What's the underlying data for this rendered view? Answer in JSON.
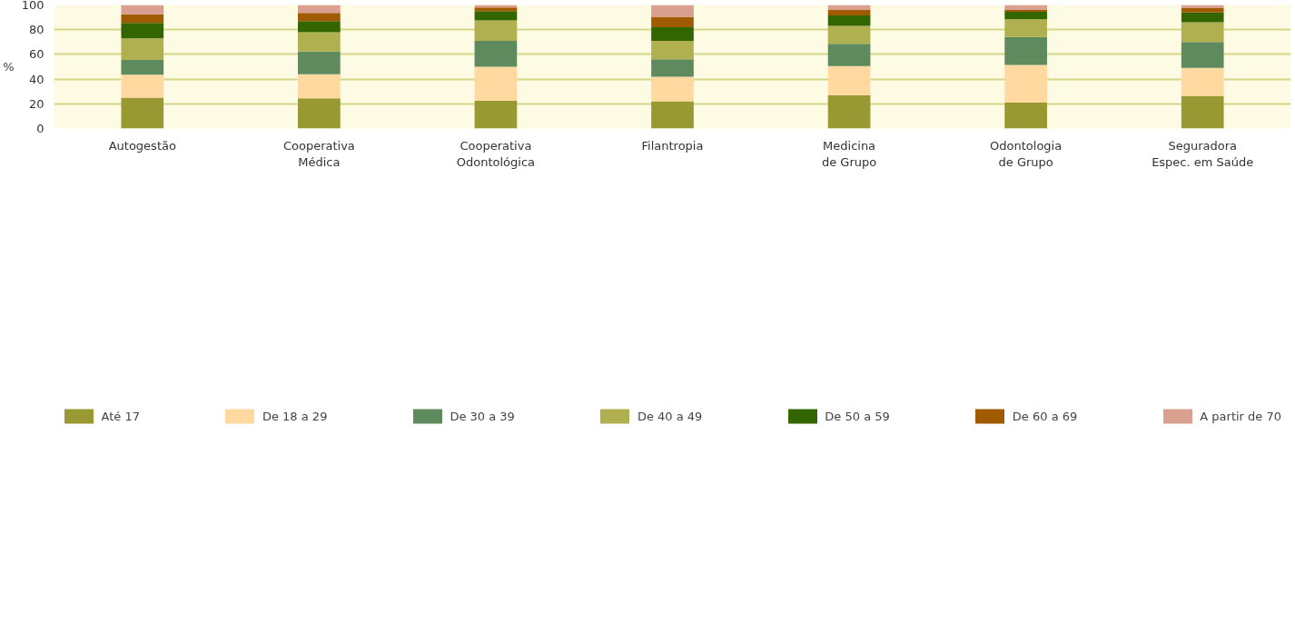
{
  "chart_data": {
    "type": "bar",
    "stacked": true,
    "ylabel": "%",
    "categories": [
      "Autogestão",
      "Cooperativa\nMédica",
      "Cooperativa\nOdontológica",
      "Filantropia",
      "Medicina\nde Grupo",
      "Odontologia\nde Grupo",
      "Seguradora\nEspec. em Saúde"
    ],
    "series": [
      {
        "name": "Até 17",
        "color": "#999933",
        "values": [
          25,
          24.5,
          22.5,
          22,
          27,
          21,
          26.5
        ]
      },
      {
        "name": "De 18 a 29",
        "color": "#ffd9a0",
        "values": [
          18.5,
          19.5,
          27.5,
          20,
          23.5,
          30.5,
          22.5
        ]
      },
      {
        "name": "De 30 a 39",
        "color": "#5e8a5e",
        "values": [
          12,
          18.5,
          21,
          14,
          18,
          22.5,
          21
        ]
      },
      {
        "name": "De 40 a 49",
        "color": "#b0b050",
        "values": [
          17.5,
          15.5,
          16.5,
          15,
          14.5,
          14.5,
          16
        ]
      },
      {
        "name": "De 50 a 59",
        "color": "#336600",
        "values": [
          12.5,
          9,
          7.5,
          11,
          8.5,
          6,
          8
        ]
      },
      {
        "name": "De 60 a 69",
        "color": "#a05a00",
        "values": [
          7,
          6.5,
          3,
          8.5,
          4.5,
          1.5,
          3.5
        ]
      },
      {
        "name": "A partir de 70",
        "color": "#d9a090",
        "values": [
          7.5,
          6.5,
          2,
          9.5,
          4,
          4,
          2.5
        ]
      }
    ],
    "ylim": [
      0,
      100
    ],
    "yticks": [
      0,
      20,
      40,
      60,
      80,
      100
    ],
    "grid": "y",
    "legend": "bottom"
  }
}
